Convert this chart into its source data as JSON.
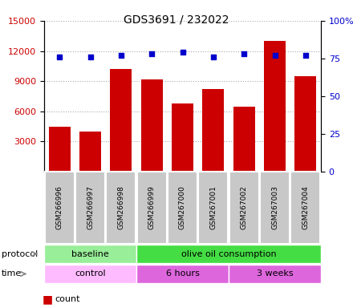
{
  "title": "GDS3691 / 232022",
  "samples": [
    "GSM266996",
    "GSM266997",
    "GSM266998",
    "GSM266999",
    "GSM267000",
    "GSM267001",
    "GSM267002",
    "GSM267003",
    "GSM267004"
  ],
  "counts": [
    4500,
    4000,
    10200,
    9200,
    6800,
    8200,
    6500,
    13000,
    9500
  ],
  "percentile_ranks": [
    76,
    76,
    77,
    78,
    79,
    76,
    78,
    77,
    77
  ],
  "ylim_left": [
    0,
    15000
  ],
  "ylim_right": [
    0,
    100
  ],
  "yticks_left": [
    3000,
    6000,
    9000,
    12000,
    15000
  ],
  "yticks_right": [
    0,
    25,
    50,
    75,
    100
  ],
  "bar_color": "#cc0000",
  "scatter_color": "#0000cc",
  "protocol_groups": [
    {
      "label": "baseline",
      "start": 0,
      "end": 3,
      "color": "#99ee99"
    },
    {
      "label": "olive oil consumption",
      "start": 3,
      "end": 9,
      "color": "#44dd44"
    }
  ],
  "time_groups": [
    {
      "label": "control",
      "start": 0,
      "end": 3,
      "color": "#ffaaff"
    },
    {
      "label": "6 hours",
      "start": 3,
      "end": 6,
      "color": "#dd66dd"
    },
    {
      "label": "3 weeks",
      "start": 6,
      "end": 9,
      "color": "#dd66dd"
    }
  ],
  "grid_color": "#aaaaaa",
  "ylabel_left_color": "#cc0000",
  "ylabel_right_color": "#0000cc",
  "bg_color": "#ffffff"
}
